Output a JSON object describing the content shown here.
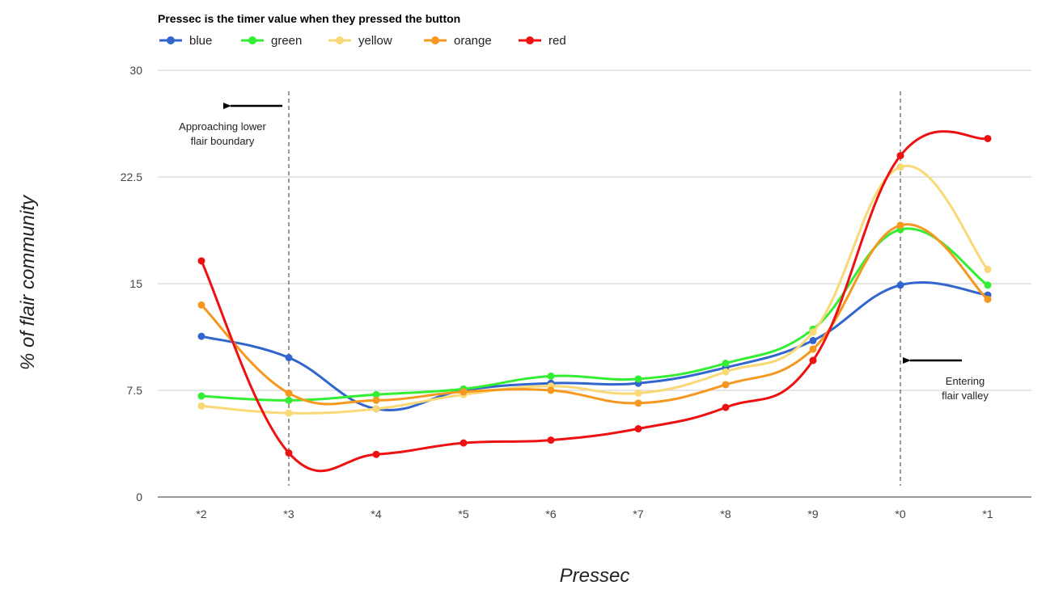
{
  "chart_data": {
    "type": "line",
    "title": "Pressec is the timer value when they pressed the button",
    "xlabel": "Pressec",
    "ylabel": "% of flair community",
    "categories": [
      "*2",
      "*3",
      "*4",
      "*5",
      "*6",
      "*7",
      "*8",
      "*9",
      "*0",
      "*1"
    ],
    "ylim": [
      0,
      30
    ],
    "yticks": [
      "0",
      "7.5",
      "15",
      "22.5",
      "30"
    ],
    "grid": true,
    "legend_position": "top-left",
    "series": [
      {
        "name": "blue",
        "color": "#3366cc",
        "values": [
          11.3,
          9.8,
          6.2,
          7.5,
          8.0,
          8.0,
          9.1,
          11.0,
          14.9,
          14.2
        ]
      },
      {
        "name": "green",
        "color": "#33ee33",
        "values": [
          7.1,
          6.8,
          7.2,
          7.6,
          8.5,
          8.3,
          9.4,
          11.8,
          18.8,
          14.9
        ]
      },
      {
        "name": "yellow",
        "color": "#f9d876",
        "values": [
          6.4,
          5.9,
          6.2,
          7.2,
          7.8,
          7.3,
          8.8,
          11.6,
          23.2,
          16.0
        ]
      },
      {
        "name": "orange",
        "color": "#f5981f",
        "values": [
          13.5,
          7.3,
          6.8,
          7.4,
          7.5,
          6.6,
          7.9,
          10.4,
          19.1,
          13.9
        ]
      },
      {
        "name": "red",
        "color": "#ee1111",
        "values": [
          16.6,
          3.1,
          3.0,
          3.8,
          4.0,
          4.8,
          6.3,
          9.6,
          24.0,
          25.2
        ]
      }
    ],
    "annotations": [
      {
        "x": "*3",
        "text_lines": [
          "Approaching lower",
          "flair boundary"
        ],
        "arrow": "left"
      },
      {
        "x": "*0",
        "text_lines": [
          "Entering",
          "flair valley"
        ],
        "arrow": "left"
      }
    ]
  }
}
